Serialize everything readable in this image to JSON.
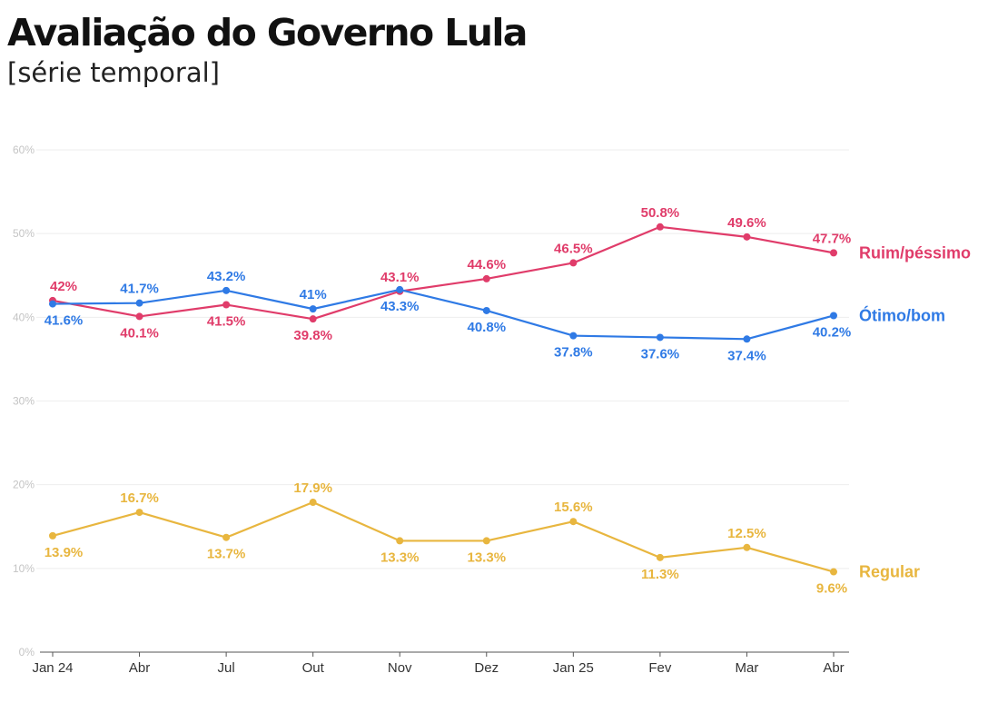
{
  "title": "Avaliação do Governo Lula",
  "subtitle": "[série temporal]",
  "chart_data": {
    "type": "line",
    "title": "Avaliação do Governo Lula",
    "subtitle": "[série temporal]",
    "xlabel": "",
    "ylabel": "",
    "categories": [
      "Jan 24",
      "Abr",
      "Jul",
      "Out",
      "Nov",
      "Dez",
      "Jan 25",
      "Fev",
      "Mar",
      "Abr"
    ],
    "ylim": [
      0,
      60
    ],
    "yticks": [
      0,
      10,
      20,
      30,
      40,
      50,
      60
    ],
    "ytick_labels": [
      "0%",
      "10%",
      "20%",
      "30%",
      "40%",
      "50%",
      "60%"
    ],
    "grid": true,
    "legend": "right, at end of each line",
    "series": [
      {
        "name": "Ruim/péssimo",
        "color": "#e03c6a",
        "values": [
          42,
          40.1,
          41.5,
          39.8,
          43.1,
          44.6,
          46.5,
          50.8,
          49.6,
          47.7
        ],
        "labels": [
          "42%",
          "40.1%",
          "41.5%",
          "39.8%",
          "43.1%",
          "44.6%",
          "46.5%",
          "50.8%",
          "49.6%",
          "47.7%"
        ],
        "label_pos": [
          "above",
          "below",
          "below",
          "below",
          "above",
          "above",
          "above",
          "above",
          "above",
          "above"
        ]
      },
      {
        "name": "Ótimo/bom",
        "color": "#2f7ae5",
        "values": [
          41.6,
          41.7,
          43.2,
          41,
          43.3,
          40.8,
          37.8,
          37.6,
          37.4,
          40.2
        ],
        "labels": [
          "41.6%",
          "41.7%",
          "43.2%",
          "41%",
          "43.3%",
          "40.8%",
          "37.8%",
          "37.6%",
          "37.4%",
          "40.2%"
        ],
        "label_pos": [
          "below",
          "above",
          "above",
          "above",
          "below",
          "below",
          "below",
          "below",
          "below",
          "below"
        ]
      },
      {
        "name": "Regular",
        "color": "#e8b63f",
        "values": [
          13.9,
          16.7,
          13.7,
          17.9,
          13.3,
          13.3,
          15.6,
          11.3,
          12.5,
          9.6
        ],
        "labels": [
          "13.9%",
          "16.7%",
          "13.7%",
          "17.9%",
          "13.3%",
          "13.3%",
          "15.6%",
          "11.3%",
          "12.5%",
          "9.6%"
        ],
        "label_pos": [
          "below",
          "above",
          "below",
          "above",
          "below",
          "below",
          "above",
          "below",
          "above",
          "below"
        ]
      }
    ]
  }
}
